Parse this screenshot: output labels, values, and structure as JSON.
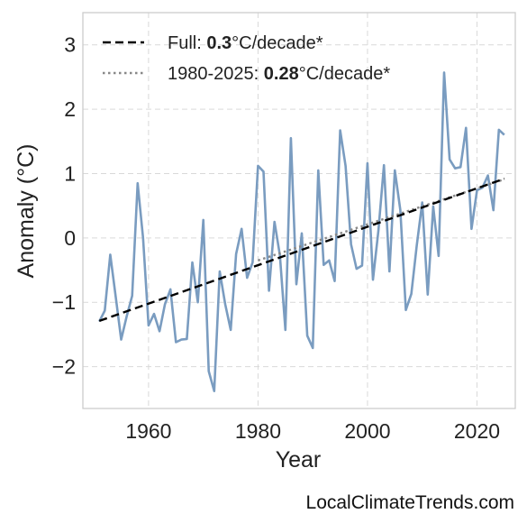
{
  "credit": "LocalClimateTrends.com",
  "colors": {
    "series": "#7a9cc0",
    "full_trend": "#000000",
    "recent_trend": "#888888",
    "grid": "#d9d9d9",
    "frame": "#cccccc"
  },
  "legend": {
    "items": [
      {
        "style": "dashed",
        "prefix": "Full: ",
        "value": "0.3",
        "suffix": "°C/decade*"
      },
      {
        "style": "dotted",
        "prefix": "1980-2025: ",
        "value": "0.28",
        "suffix": "°C/decade*"
      }
    ],
    "placement": "top-left"
  },
  "chart_data": {
    "type": "line",
    "xlabel": "Year",
    "ylabel": "Anomaly (°C)",
    "xlim": [
      1948,
      2027
    ],
    "ylim": [
      -2.65,
      3.5
    ],
    "xticks": [
      1960,
      1980,
      2000,
      2020
    ],
    "yticks": [
      3,
      2,
      1,
      0,
      -1,
      -2
    ],
    "ytick_labels": [
      "3",
      "2",
      "1",
      "0",
      "−1",
      "−2"
    ],
    "grid": true,
    "series": [
      {
        "values_x": [
          1951,
          1952,
          1953,
          1954,
          1955,
          1956,
          1957,
          1958,
          1959,
          1960,
          1961,
          1962,
          1963,
          1964,
          1965,
          1966,
          1967,
          1968,
          1969,
          1970,
          1971,
          1972,
          1973,
          1974,
          1975,
          1976,
          1977,
          1978,
          1979,
          1980,
          1981,
          1982,
          1983,
          1984,
          1985,
          1986,
          1987,
          1988,
          1989,
          1990,
          1991,
          1992,
          1993,
          1994,
          1995,
          1996,
          1997,
          1998,
          1999,
          2000,
          2001,
          2002,
          2003,
          2004,
          2005,
          2006,
          2007,
          2008,
          2009,
          2010,
          2011,
          2012,
          2013,
          2014,
          2015,
          2016,
          2017,
          2018,
          2019,
          2020,
          2021,
          2022,
          2023,
          2024,
          2025
        ],
        "values_y": [
          -1.3,
          -1.13,
          -0.26,
          -0.92,
          -1.58,
          -1.22,
          -0.9,
          0.85,
          0.0,
          -1.36,
          -1.18,
          -1.45,
          -1.03,
          -0.8,
          -1.62,
          -1.58,
          -1.57,
          -0.38,
          -1.0,
          0.28,
          -2.07,
          -2.38,
          -0.52,
          -1.03,
          -1.43,
          -0.25,
          0.14,
          -0.62,
          -0.38,
          1.12,
          1.03,
          -0.82,
          0.25,
          -0.27,
          -1.43,
          1.55,
          -0.72,
          0.07,
          -1.52,
          -1.71,
          1.05,
          -0.42,
          -0.35,
          -0.67,
          1.67,
          1.12,
          -0.1,
          -0.48,
          -0.43,
          1.16,
          -0.65,
          0.12,
          1.13,
          -0.52,
          1.05,
          0.43,
          -1.12,
          -0.87,
          -0.12,
          0.55,
          -0.88,
          0.49,
          -0.28,
          2.57,
          1.22,
          1.08,
          1.1,
          1.71,
          0.14,
          0.74,
          0.78,
          0.97,
          0.43,
          1.68,
          1.6
        ]
      }
    ],
    "trend_lines": [
      {
        "style": "dashed",
        "x": [
          1951,
          2025
        ],
        "y": [
          -1.29,
          0.92
        ]
      },
      {
        "style": "dotted",
        "x": [
          1980,
          2025
        ],
        "y": [
          -0.35,
          0.91
        ]
      }
    ]
  }
}
